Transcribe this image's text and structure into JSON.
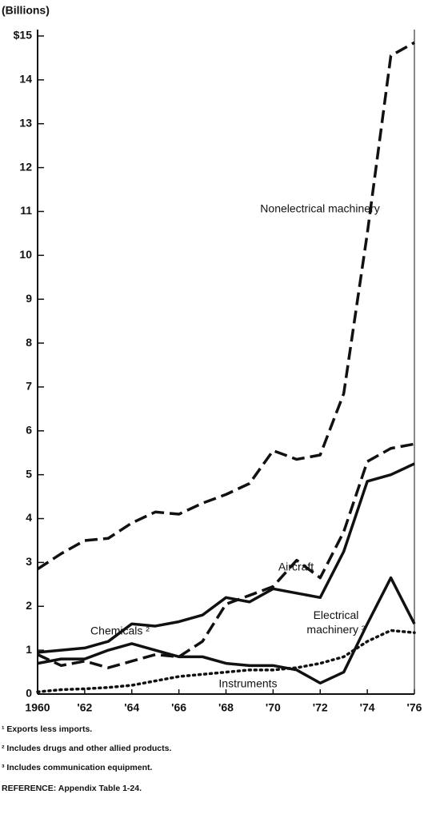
{
  "chart_data": {
    "type": "line",
    "y_label": "(Billions)",
    "x": [
      1960,
      1961,
      1962,
      1963,
      1964,
      1965,
      1966,
      1967,
      1968,
      1969,
      1970,
      1971,
      1972,
      1973,
      1974,
      1975,
      1976
    ],
    "xlim": [
      1960,
      1976
    ],
    "xticks": [
      1960,
      {
        "value": 1962,
        "label": "'62"
      },
      {
        "value": 1964,
        "label": "'64"
      },
      {
        "value": 1966,
        "label": "'66"
      },
      {
        "value": 1968,
        "label": "'68"
      },
      {
        "value": 1970,
        "label": "'70"
      },
      {
        "value": 1972,
        "label": "'72"
      },
      {
        "value": 1974,
        "label": "'74"
      },
      {
        "value": 1976,
        "label": "'76"
      }
    ],
    "ylim": [
      0,
      15
    ],
    "yticks": [
      0,
      1,
      2,
      3,
      4,
      5,
      6,
      7,
      8,
      9,
      10,
      11,
      12,
      13,
      14,
      {
        "value": 15,
        "label": "$15"
      }
    ],
    "series": [
      {
        "name": "Nonelectrical machinery",
        "color": "#111",
        "style": "dashed",
        "values": [
          2.85,
          3.2,
          3.5,
          3.55,
          3.9,
          4.15,
          4.1,
          4.35,
          4.55,
          4.8,
          5.55,
          5.35,
          5.45,
          6.85,
          10.5,
          14.55,
          14.85
        ]
      },
      {
        "name": "Aircraft",
        "color": "#111",
        "style": "dashed",
        "values": [
          0.9,
          0.65,
          0.75,
          0.6,
          0.75,
          0.9,
          0.85,
          1.2,
          2.05,
          2.25,
          2.45,
          3.05,
          2.65,
          3.7,
          5.3,
          5.6,
          5.7
        ]
      },
      {
        "name": "Chemicals ²",
        "color": "#111",
        "style": "solid",
        "values": [
          0.95,
          1.0,
          1.05,
          1.2,
          1.6,
          1.55,
          1.65,
          1.8,
          2.2,
          2.1,
          2.4,
          2.3,
          2.2,
          3.25,
          4.85,
          5.0,
          5.25
        ]
      },
      {
        "name": "Electrical machinery ³",
        "color": "#111",
        "style": "solid",
        "values": [
          0.7,
          0.8,
          0.8,
          1.0,
          1.15,
          1.0,
          0.85,
          0.85,
          0.7,
          0.65,
          0.65,
          0.55,
          0.25,
          0.5,
          1.6,
          2.65,
          1.6
        ]
      },
      {
        "name": "Instruments",
        "color": "#111",
        "style": "dotted",
        "values": [
          0.05,
          0.1,
          0.12,
          0.15,
          0.2,
          0.3,
          0.4,
          0.45,
          0.5,
          0.55,
          0.55,
          0.6,
          0.7,
          0.85,
          1.2,
          1.45,
          1.4
        ]
      }
    ],
    "footnotes": [
      "¹ Exports less imports.",
      "² Includes drugs and other allied products.",
      "³ Includes communication equipment.",
      "REFERENCE: Appendix Table 1-24."
    ]
  }
}
